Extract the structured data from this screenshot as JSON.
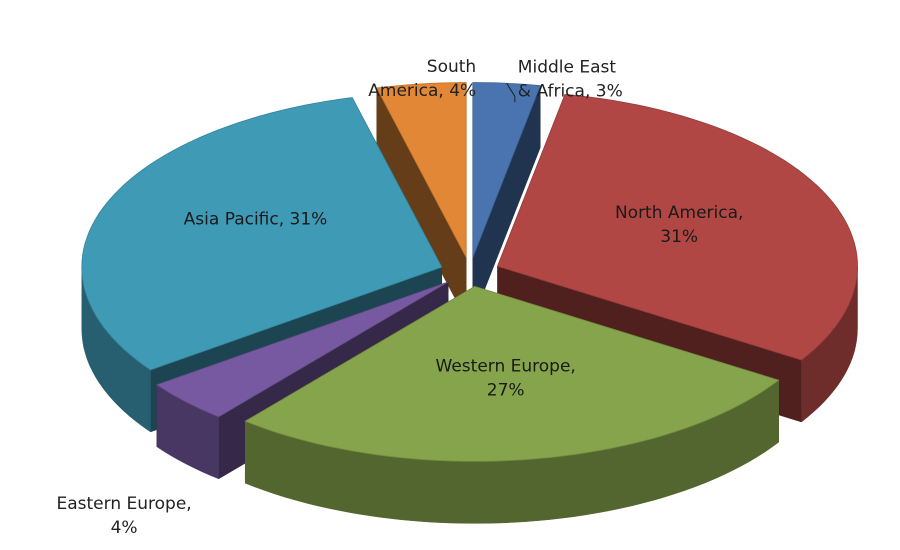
{
  "chart_data": {
    "type": "pie",
    "style": "3d-exploded",
    "legend": "none",
    "slices": [
      {
        "name": "Middle East & Africa",
        "value": 3,
        "label_lines": [
          "Middle East",
          "& Africa, 3%"
        ],
        "color": "#4A74B0"
      },
      {
        "name": "North America",
        "value": 31,
        "label_lines": [
          "North America,",
          "31%"
        ],
        "color": "#B14744"
      },
      {
        "name": "Western Europe",
        "value": 27,
        "label_lines": [
          "Western Europe,",
          "27%"
        ],
        "color": "#86A44B"
      },
      {
        "name": "Eastern Europe",
        "value": 4,
        "label_lines": [
          "Eastern Europe,",
          "4%"
        ],
        "color": "#7659A0"
      },
      {
        "name": "Asia Pacific",
        "value": 31,
        "label_lines": [
          "Asia Pacific, 31%"
        ],
        "color": "#3F9AB5"
      },
      {
        "name": "South America",
        "value": 4,
        "label_lines": [
          "South",
          "America, 4%"
        ],
        "color": "#E18735"
      }
    ]
  }
}
